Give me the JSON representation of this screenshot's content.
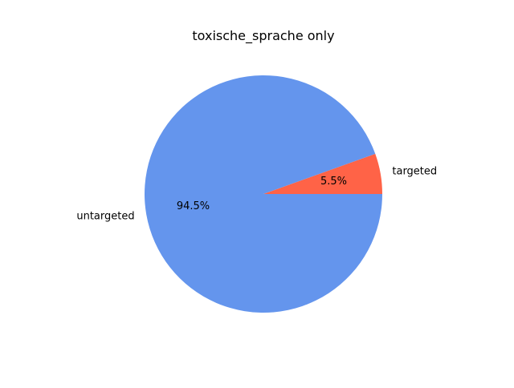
{
  "chart_data": {
    "type": "pie",
    "title": "toxische_sprache only",
    "labels": [
      "targeted",
      "untargeted"
    ],
    "values": [
      5.5,
      94.5
    ],
    "percent_labels": [
      "5.5%",
      "94.5%"
    ],
    "colors": [
      "#ff6347",
      "#6495ed"
    ],
    "start_angle_deg": 0,
    "direction": "counterclockwise",
    "legend": "none"
  }
}
